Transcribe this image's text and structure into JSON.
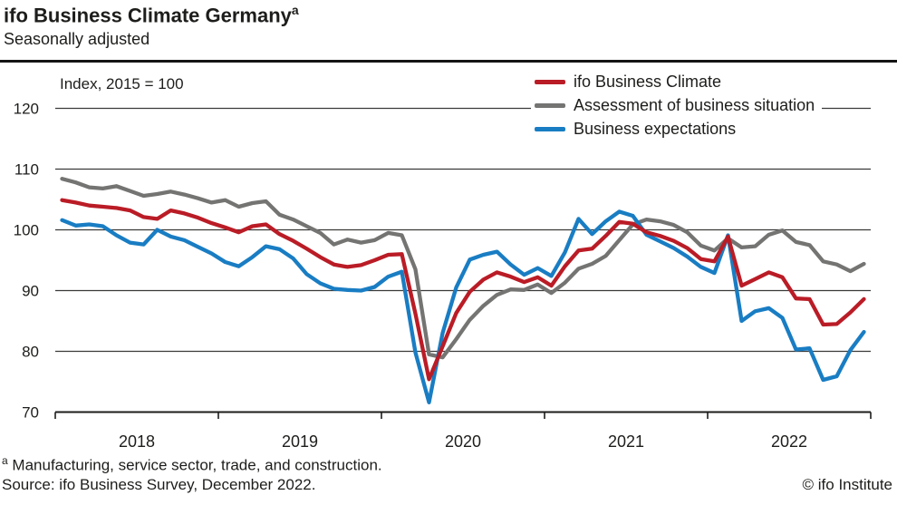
{
  "header": {
    "title": "ifo Business Climate Germany",
    "title_superscript": "a",
    "subtitle": "Seasonally adjusted"
  },
  "chart_data": {
    "type": "line",
    "title": "ifo Business Climate Germany",
    "index_note": "Index, 2015 = 100",
    "x": {
      "start_year": 2018,
      "start_month": 1,
      "frequency": "monthly",
      "year_labels": [
        "2018",
        "2019",
        "2020",
        "2021",
        "2022"
      ]
    },
    "y_axis": {
      "ticks": [
        120,
        110,
        100,
        90,
        80,
        70
      ],
      "min": 70,
      "max": 120
    },
    "grid": true,
    "legend_position": "top-right",
    "colors": {
      "climate": "#ba1c26",
      "assessment": "#747473",
      "expectations": "#197dc3"
    },
    "series": [
      {
        "name": "ifo Business Climate",
        "color": "#ba1c26",
        "values": [
          104.9,
          104.5,
          104.0,
          103.8,
          103.6,
          103.2,
          102.1,
          101.8,
          103.2,
          102.7,
          102.0,
          101.1,
          100.4,
          99.6,
          100.6,
          100.9,
          99.3,
          98.2,
          96.9,
          95.5,
          94.3,
          93.9,
          94.2,
          95.0,
          95.9,
          96.0,
          86.2,
          75.4,
          80.8,
          86.3,
          89.8,
          91.8,
          93.0,
          92.3,
          91.4,
          92.2,
          90.8,
          94.0,
          96.6,
          96.9,
          99.0,
          101.3,
          101.0,
          99.6,
          99.0,
          98.2,
          97.0,
          95.2,
          94.8,
          98.9,
          90.8,
          91.9,
          93.0,
          92.2,
          88.7,
          88.6,
          84.4,
          84.5,
          86.4,
          88.6
        ]
      },
      {
        "name": "Assessment of business situation",
        "color": "#747473",
        "values": [
          108.4,
          107.8,
          107.0,
          106.8,
          107.2,
          106.4,
          105.6,
          105.9,
          106.3,
          105.8,
          105.2,
          104.5,
          104.9,
          103.8,
          104.4,
          104.7,
          102.5,
          101.7,
          100.6,
          99.5,
          97.6,
          98.4,
          97.9,
          98.3,
          99.5,
          99.1,
          93.5,
          79.5,
          79.0,
          82.0,
          85.2,
          87.5,
          89.3,
          90.2,
          90.1,
          91.0,
          89.6,
          91.3,
          93.6,
          94.4,
          95.7,
          98.3,
          100.9,
          101.7,
          101.4,
          100.8,
          99.6,
          97.4,
          96.6,
          98.6,
          97.1,
          97.3,
          99.2,
          99.9,
          98.0,
          97.5,
          94.8,
          94.3,
          93.2,
          94.4
        ]
      },
      {
        "name": "Business expectations",
        "color": "#197dc3",
        "values": [
          101.6,
          100.7,
          100.9,
          100.6,
          99.1,
          97.9,
          97.6,
          100.0,
          98.9,
          98.3,
          97.2,
          96.1,
          94.7,
          94.0,
          95.5,
          97.3,
          96.8,
          95.3,
          92.7,
          91.2,
          90.3,
          90.1,
          90.0,
          90.6,
          92.3,
          93.1,
          79.8,
          71.6,
          83.0,
          90.5,
          95.1,
          95.9,
          96.4,
          94.3,
          92.6,
          93.7,
          92.4,
          96.3,
          101.8,
          99.3,
          101.4,
          103.0,
          102.3,
          99.2,
          98.1,
          97.0,
          95.6,
          93.9,
          92.9,
          99.1,
          85.0,
          86.6,
          87.1,
          85.5,
          80.3,
          80.5,
          75.3,
          75.9,
          80.2,
          83.2
        ]
      }
    ]
  },
  "footnotes": {
    "note_superscript": "a",
    "note": "Manufacturing, service sector, trade, and construction.",
    "source": "Source: ifo Business Survey, December 2022.",
    "copyright": "© ifo Institute"
  }
}
